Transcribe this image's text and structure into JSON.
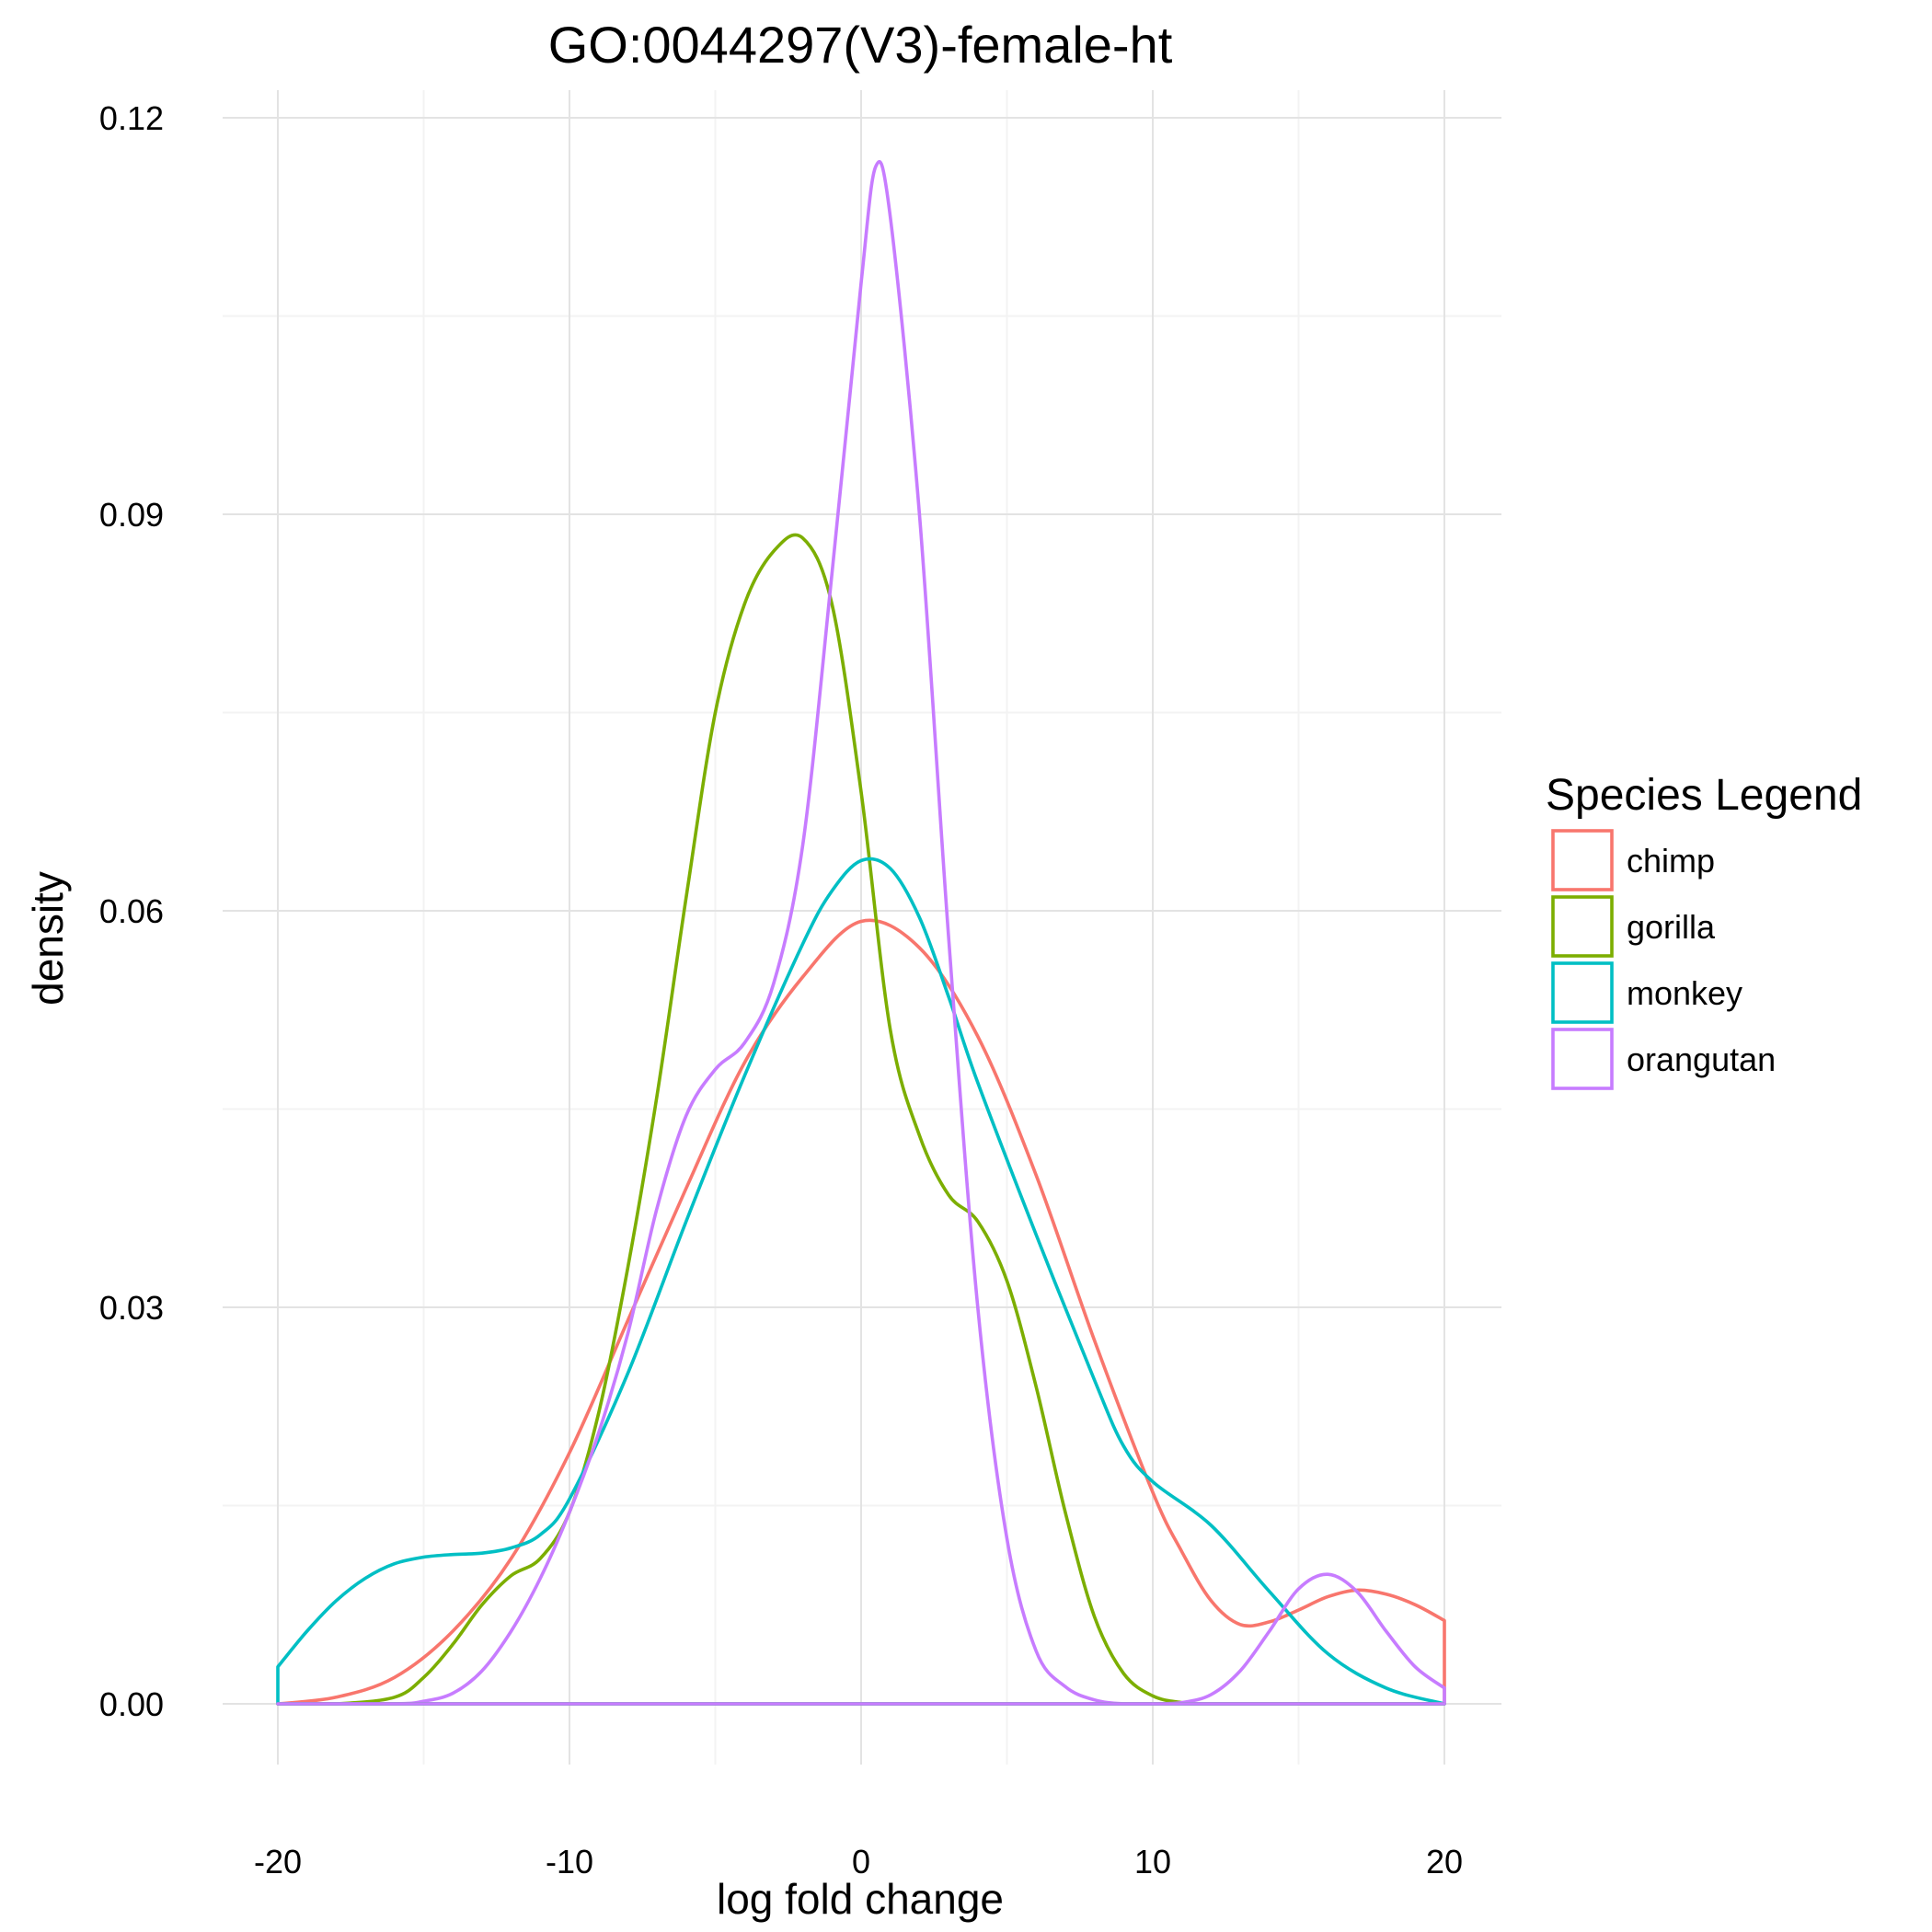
{
  "chart_data": {
    "type": "line",
    "title": "GO:0044297(V3)-female-ht",
    "xlabel": "log fold change",
    "ylabel": "density",
    "xlim": [
      -20,
      20
    ],
    "ylim": [
      0,
      0.12
    ],
    "x_ticks": [
      -20,
      -10,
      0,
      10,
      20
    ],
    "x_tick_labels": [
      "-20",
      "-10",
      "0",
      "10",
      "20"
    ],
    "y_ticks": [
      0,
      0.03,
      0.06,
      0.09,
      0.12
    ],
    "y_tick_labels": [
      "0.00",
      "0.03",
      "0.06",
      "0.09",
      "0.12"
    ],
    "grid": true,
    "legend": {
      "title": "Species Legend",
      "position": "right"
    },
    "series": [
      {
        "name": "chimp",
        "color": "#f8766d",
        "x": [
          -20,
          -18,
          -16,
          -14,
          -12,
          -10,
          -8,
          -6,
          -4,
          -2,
          0,
          2,
          4,
          6,
          8,
          10,
          11,
          12,
          13,
          14,
          15,
          16,
          17,
          18,
          19,
          20
        ],
        "y": [
          0,
          0.0005,
          0.002,
          0.0055,
          0.011,
          0.019,
          0.029,
          0.039,
          0.0485,
          0.055,
          0.0592,
          0.0572,
          0.0505,
          0.04,
          0.0275,
          0.016,
          0.0115,
          0.0078,
          0.006,
          0.0062,
          0.0071,
          0.0081,
          0.0086,
          0.0083,
          0.0075,
          0.0063
        ]
      },
      {
        "name": "gorilla",
        "color": "#7cae00",
        "x": [
          -20,
          -18,
          -16,
          -15,
          -14,
          -13,
          -12,
          -11,
          -10,
          -9,
          -8,
          -7,
          -6,
          -5,
          -4,
          -3,
          -2,
          -1,
          0,
          1,
          2,
          3,
          4,
          5,
          6,
          7,
          8,
          9,
          10,
          11,
          12,
          20
        ],
        "y": [
          0,
          0,
          0.0005,
          0.002,
          0.0045,
          0.0075,
          0.0097,
          0.011,
          0.0145,
          0.022,
          0.033,
          0.046,
          0.061,
          0.075,
          0.0832,
          0.0872,
          0.0882,
          0.0832,
          0.069,
          0.051,
          0.043,
          0.0385,
          0.0365,
          0.032,
          0.024,
          0.0145,
          0.0066,
          0.0023,
          0.0006,
          0.0001,
          0,
          0
        ]
      },
      {
        "name": "monkey",
        "color": "#00bfc4",
        "x": [
          -20,
          -19,
          -18,
          -17,
          -16,
          -15,
          -14,
          -13,
          -12,
          -11,
          -10,
          -8,
          -6,
          -4,
          -2,
          -1,
          0,
          1,
          2,
          3,
          4,
          6,
          8,
          9,
          10,
          12,
          14,
          16,
          18,
          20
        ],
        "y": [
          0.0028,
          0.0055,
          0.0078,
          0.0095,
          0.0106,
          0.0111,
          0.0113,
          0.0114,
          0.0118,
          0.0128,
          0.0155,
          0.025,
          0.0365,
          0.0475,
          0.0575,
          0.0615,
          0.0638,
          0.0632,
          0.0595,
          0.0535,
          0.047,
          0.0355,
          0.0245,
          0.0195,
          0.0168,
          0.0135,
          0.0085,
          0.0038,
          0.0012,
          0
        ]
      },
      {
        "name": "orangutan",
        "color": "#c77cff",
        "x": [
          -20,
          -16,
          -15,
          -14,
          -13,
          -12,
          -11,
          -10,
          -9,
          -8,
          -7,
          -6,
          -5,
          -4,
          -3,
          -2,
          -1,
          0,
          0.5,
          1,
          2,
          3,
          4,
          5,
          6,
          7,
          8,
          9,
          10,
          11,
          12,
          13,
          14,
          15,
          16,
          17,
          18,
          19,
          20
        ],
        "y": [
          0,
          0,
          0.0002,
          0.0008,
          0.0025,
          0.0055,
          0.0095,
          0.0145,
          0.0205,
          0.028,
          0.0375,
          0.0445,
          0.048,
          0.05,
          0.0545,
          0.065,
          0.0855,
          0.1075,
          0.1163,
          0.1125,
          0.09,
          0.058,
          0.03,
          0.0125,
          0.004,
          0.0013,
          0.0003,
          0,
          0,
          0.0001,
          0.0007,
          0.0025,
          0.0055,
          0.0087,
          0.0098,
          0.0085,
          0.0055,
          0.0028,
          0.0012
        ]
      }
    ]
  }
}
